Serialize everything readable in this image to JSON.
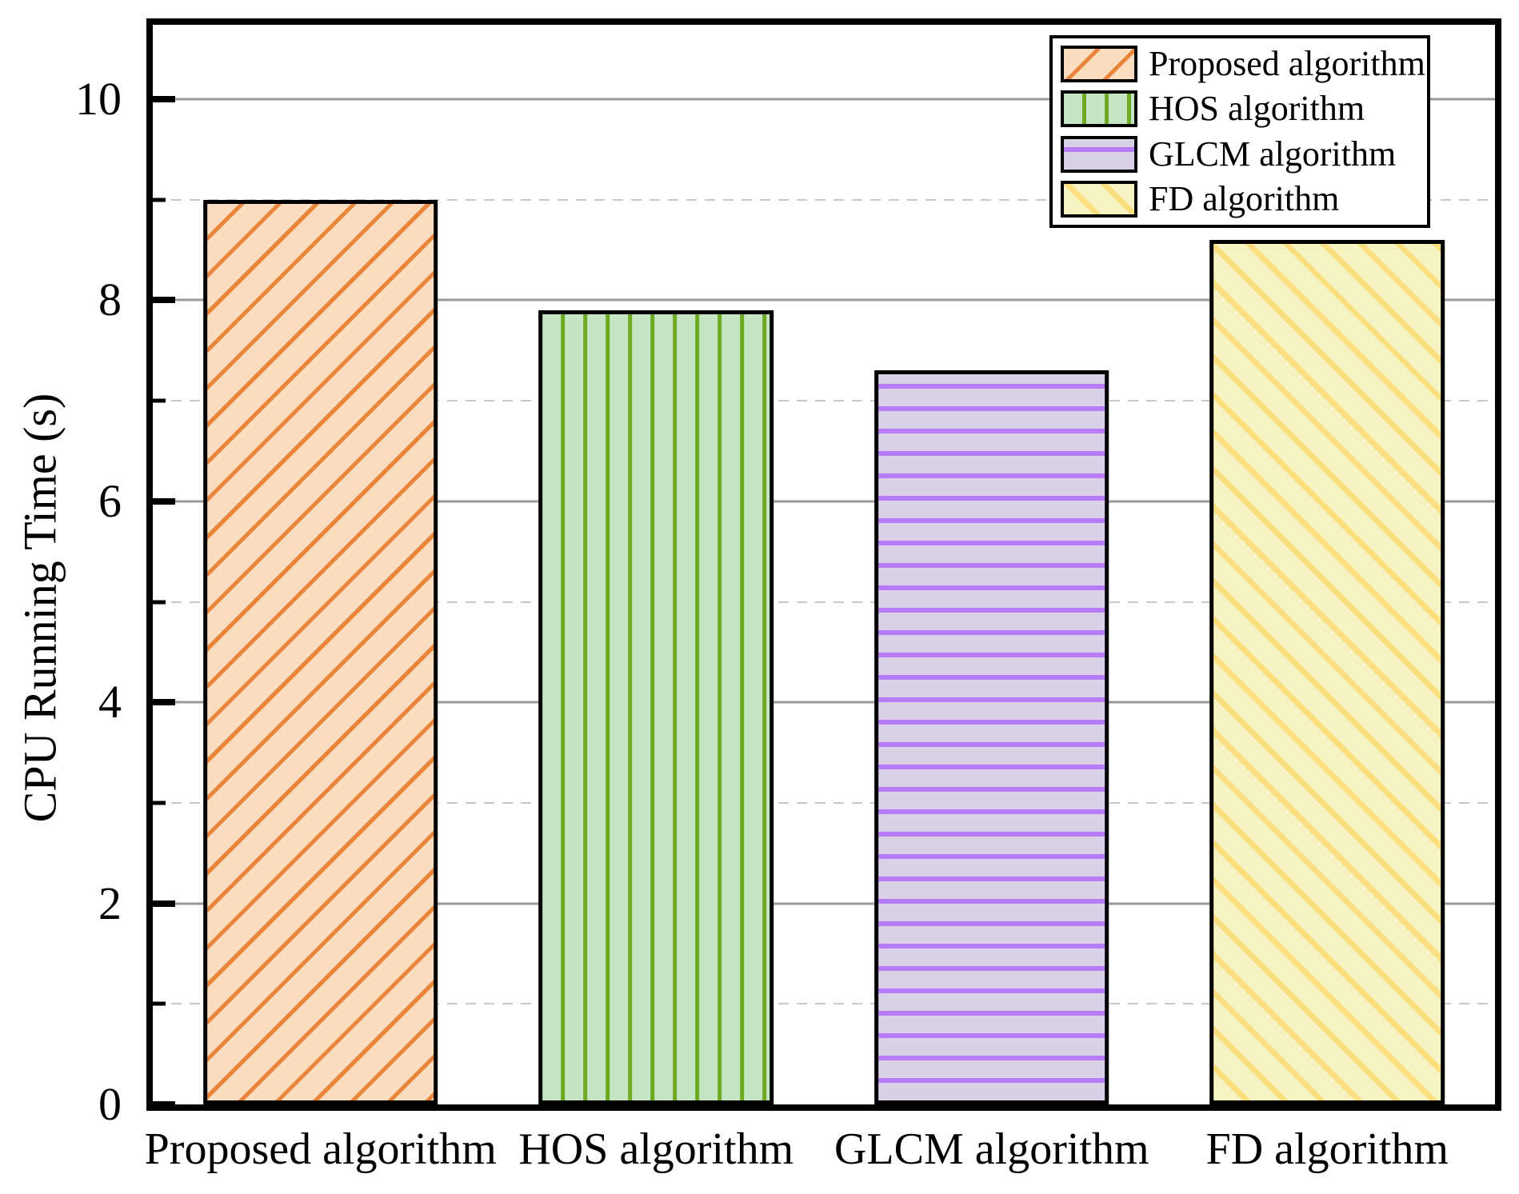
{
  "figure": {
    "y_axis_title": "CPU Running Time (s)"
  },
  "chart_data": {
    "type": "bar",
    "title": "",
    "categories": [
      "Proposed algorithm",
      "HOS algorithm",
      "GLCM algorithm",
      "FD algorithm"
    ],
    "values": [
      9.0,
      7.9,
      7.3,
      8.6
    ],
    "xlabel": "",
    "ylabel": "CPU Running Time (s)",
    "ylim": [
      0,
      10.74
    ],
    "yticks_major": [
      0,
      2,
      4,
      6,
      8,
      10
    ],
    "yticks_minor": [
      1,
      3,
      5,
      7,
      9
    ],
    "grid": {
      "major_style": "solid",
      "minor_style": "dashed",
      "major_color": "#999999",
      "minor_color": "#c8c8c8"
    },
    "legend_position": "top-right",
    "legend_entries": [
      "Proposed algorithm",
      "HOS algorithm",
      "GLCM algorithm",
      "FD algorithm"
    ],
    "series_styles": [
      {
        "name": "Proposed algorithm",
        "fill": "#FADDBE",
        "hatch_color": "#E8853A",
        "hatch": "diagonal-forward"
      },
      {
        "name": "HOS algorithm",
        "fill": "#C5E5C4",
        "hatch_color": "#6CA820",
        "hatch": "vertical"
      },
      {
        "name": "GLCM algorithm",
        "fill": "#DAD1E9",
        "hatch_color": "#B87BF5",
        "hatch": "horizontal"
      },
      {
        "name": "FD algorithm",
        "fill": "#F6F3C2",
        "hatch_color": "#FBDF7E",
        "hatch": "diagonal-backward"
      }
    ]
  }
}
